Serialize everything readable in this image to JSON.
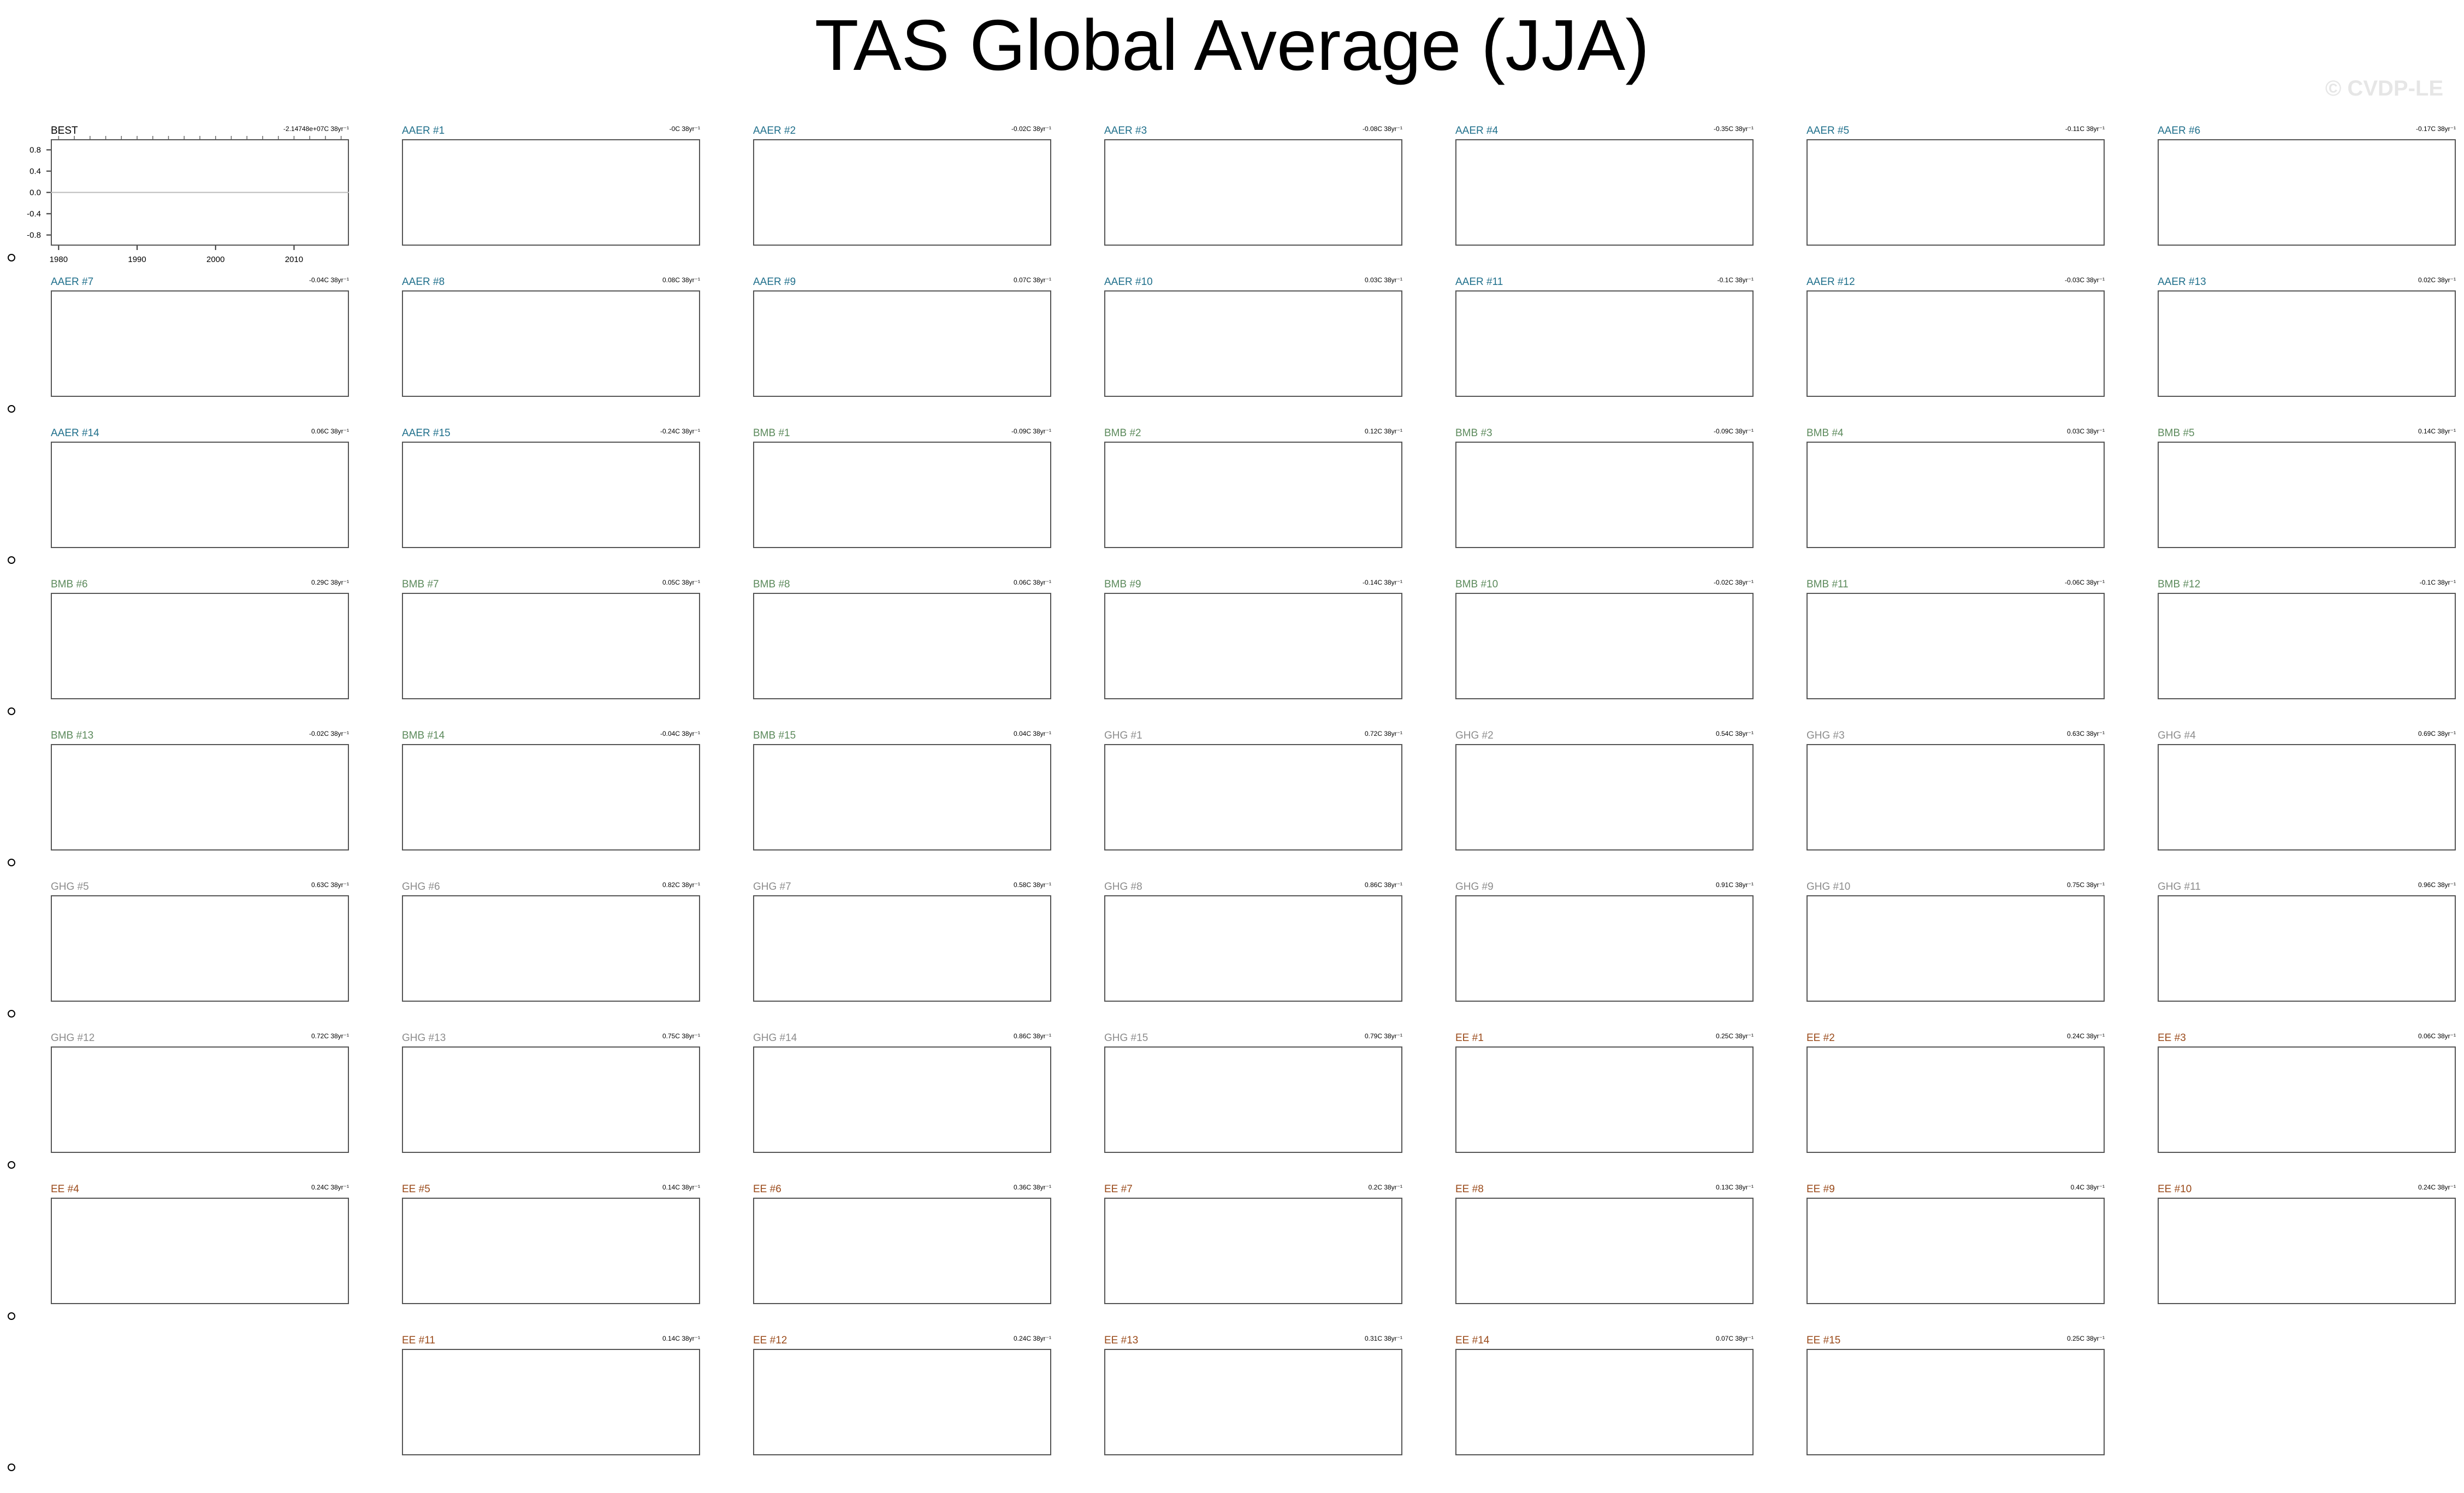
{
  "title": "TAS Global Average (JJA)",
  "watermark": "© CVDP-LE",
  "colors": {
    "BEST": "#000000",
    "AAER": "#1f6f8b",
    "BMB": "#5c8a5c",
    "GHG": "#8c8c8c",
    "EE": "#9a4a1a"
  },
  "chart_data": {
    "type": "line",
    "panel_count": 61,
    "x_ticklabels": [
      "1980",
      "1990",
      "2000",
      "2010"
    ],
    "y_ticklabels": [
      "0.8",
      "0.4",
      "0.0",
      "-0.4",
      "-0.8"
    ],
    "ylim": [
      -1,
      1
    ],
    "xlim": [
      1979,
      2017
    ],
    "grid": false,
    "panels": [
      {
        "label": "BEST",
        "group": "BEST",
        "trend": "-2.14748e+07C 38yr⁻¹"
      },
      {
        "label": "AAER #1",
        "group": "AAER",
        "trend": "-0C 38yr⁻¹"
      },
      {
        "label": "AAER #2",
        "group": "AAER",
        "trend": "-0.02C 38yr⁻¹"
      },
      {
        "label": "AAER #3",
        "group": "AAER",
        "trend": "-0.08C 38yr⁻¹"
      },
      {
        "label": "AAER #4",
        "group": "AAER",
        "trend": "-0.35C 38yr⁻¹"
      },
      {
        "label": "AAER #5",
        "group": "AAER",
        "trend": "-0.11C 38yr⁻¹"
      },
      {
        "label": "AAER #6",
        "group": "AAER",
        "trend": "-0.17C 38yr⁻¹"
      },
      {
        "label": "AAER #7",
        "group": "AAER",
        "trend": "-0.04C 38yr⁻¹"
      },
      {
        "label": "AAER #8",
        "group": "AAER",
        "trend": "0.08C 38yr⁻¹"
      },
      {
        "label": "AAER #9",
        "group": "AAER",
        "trend": "0.07C 38yr⁻¹"
      },
      {
        "label": "AAER #10",
        "group": "AAER",
        "trend": "0.03C 38yr⁻¹"
      },
      {
        "label": "AAER #11",
        "group": "AAER",
        "trend": "-0.1C 38yr⁻¹"
      },
      {
        "label": "AAER #12",
        "group": "AAER",
        "trend": "-0.03C 38yr⁻¹"
      },
      {
        "label": "AAER #13",
        "group": "AAER",
        "trend": "0.02C 38yr⁻¹"
      },
      {
        "label": "AAER #14",
        "group": "AAER",
        "trend": "0.06C 38yr⁻¹"
      },
      {
        "label": "AAER #15",
        "group": "AAER",
        "trend": "-0.24C 38yr⁻¹"
      },
      {
        "label": "BMB #1",
        "group": "BMB",
        "trend": "-0.09C 38yr⁻¹"
      },
      {
        "label": "BMB #2",
        "group": "BMB",
        "trend": "0.12C 38yr⁻¹"
      },
      {
        "label": "BMB #3",
        "group": "BMB",
        "trend": "-0.09C 38yr⁻¹"
      },
      {
        "label": "BMB #4",
        "group": "BMB",
        "trend": "0.03C 38yr⁻¹"
      },
      {
        "label": "BMB #5",
        "group": "BMB",
        "trend": "0.14C 38yr⁻¹"
      },
      {
        "label": "BMB #6",
        "group": "BMB",
        "trend": "0.29C 38yr⁻¹"
      },
      {
        "label": "BMB #7",
        "group": "BMB",
        "trend": "0.05C 38yr⁻¹"
      },
      {
        "label": "BMB #8",
        "group": "BMB",
        "trend": "0.06C 38yr⁻¹"
      },
      {
        "label": "BMB #9",
        "group": "BMB",
        "trend": "-0.14C 38yr⁻¹"
      },
      {
        "label": "BMB #10",
        "group": "BMB",
        "trend": "-0.02C 38yr⁻¹"
      },
      {
        "label": "BMB #11",
        "group": "BMB",
        "trend": "-0.06C 38yr⁻¹"
      },
      {
        "label": "BMB #12",
        "group": "BMB",
        "trend": "-0.1C 38yr⁻¹"
      },
      {
        "label": "BMB #13",
        "group": "BMB",
        "trend": "-0.02C 38yr⁻¹"
      },
      {
        "label": "BMB #14",
        "group": "BMB",
        "trend": "-0.04C 38yr⁻¹"
      },
      {
        "label": "BMB #15",
        "group": "BMB",
        "trend": "0.04C 38yr⁻¹"
      },
      {
        "label": "GHG #1",
        "group": "GHG",
        "trend": "0.72C 38yr⁻¹"
      },
      {
        "label": "GHG #2",
        "group": "GHG",
        "trend": "0.54C 38yr⁻¹"
      },
      {
        "label": "GHG #3",
        "group": "GHG",
        "trend": "0.63C 38yr⁻¹"
      },
      {
        "label": "GHG #4",
        "group": "GHG",
        "trend": "0.69C 38yr⁻¹"
      },
      {
        "label": "GHG #5",
        "group": "GHG",
        "trend": "0.63C 38yr⁻¹"
      },
      {
        "label": "GHG #6",
        "group": "GHG",
        "trend": "0.82C 38yr⁻¹"
      },
      {
        "label": "GHG #7",
        "group": "GHG",
        "trend": "0.58C 38yr⁻¹"
      },
      {
        "label": "GHG #8",
        "group": "GHG",
        "trend": "0.86C 38yr⁻¹"
      },
      {
        "label": "GHG #9",
        "group": "GHG",
        "trend": "0.91C 38yr⁻¹"
      },
      {
        "label": "GHG #10",
        "group": "GHG",
        "trend": "0.75C 38yr⁻¹"
      },
      {
        "label": "GHG #11",
        "group": "GHG",
        "trend": "0.96C 38yr⁻¹"
      },
      {
        "label": "GHG #12",
        "group": "GHG",
        "trend": "0.72C 38yr⁻¹"
      },
      {
        "label": "GHG #13",
        "group": "GHG",
        "trend": "0.75C 38yr⁻¹"
      },
      {
        "label": "GHG #14",
        "group": "GHG",
        "trend": "0.86C 38yr⁻¹"
      },
      {
        "label": "GHG #15",
        "group": "GHG",
        "trend": "0.79C 38yr⁻¹"
      },
      {
        "label": "EE #1",
        "group": "EE",
        "trend": "0.25C 38yr⁻¹"
      },
      {
        "label": "EE #2",
        "group": "EE",
        "trend": "0.24C 38yr⁻¹"
      },
      {
        "label": "EE #3",
        "group": "EE",
        "trend": "0.06C 38yr⁻¹"
      },
      {
        "label": "EE #4",
        "group": "EE",
        "trend": "0.24C 38yr⁻¹"
      },
      {
        "label": "EE #5",
        "group": "EE",
        "trend": "0.14C 38yr⁻¹"
      },
      {
        "label": "EE #6",
        "group": "EE",
        "trend": "0.36C 38yr⁻¹"
      },
      {
        "label": "EE #7",
        "group": "EE",
        "trend": "0.2C 38yr⁻¹"
      },
      {
        "label": "EE #8",
        "group": "EE",
        "trend": "0.13C 38yr⁻¹"
      },
      {
        "label": "EE #9",
        "group": "EE",
        "trend": "0.4C 38yr⁻¹"
      },
      {
        "label": "EE #10",
        "group": "EE",
        "trend": "0.24C 38yr⁻¹"
      },
      {
        "label": "EE #11",
        "group": "EE",
        "trend": "0.14C 38yr⁻¹"
      },
      {
        "label": "EE #12",
        "group": "EE",
        "trend": "0.24C 38yr⁻¹"
      },
      {
        "label": "EE #13",
        "group": "EE",
        "trend": "0.31C 38yr⁻¹"
      },
      {
        "label": "EE #14",
        "group": "EE",
        "trend": "0.07C 38yr⁻¹"
      },
      {
        "label": "EE #15",
        "group": "EE",
        "trend": "0.25C 38yr⁻¹"
      }
    ]
  }
}
